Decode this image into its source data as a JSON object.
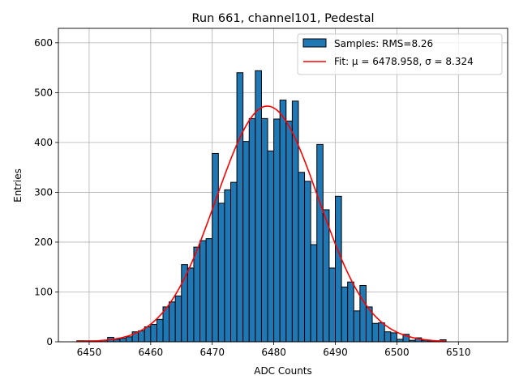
{
  "chart_data": {
    "type": "bar",
    "title": "Run 661, channel101, Pedestal",
    "xlabel": "ADC Counts",
    "ylabel": "Entries",
    "xlim": [
      6445,
      6518
    ],
    "ylim": [
      0,
      629
    ],
    "xticks": [
      6450,
      6460,
      6470,
      6480,
      6490,
      6500,
      6510
    ],
    "yticks": [
      0,
      100,
      200,
      300,
      400,
      500,
      600
    ],
    "grid": true,
    "legend_placement": "top-right",
    "bin_start": 6448,
    "bin_width": 1,
    "values": [
      2,
      2,
      2,
      2,
      3,
      9,
      5,
      7,
      10,
      20,
      22,
      30,
      35,
      45,
      70,
      80,
      92,
      155,
      148,
      190,
      203,
      207,
      378,
      278,
      305,
      320,
      540,
      402,
      448,
      544,
      448,
      383,
      447,
      485,
      443,
      483,
      340,
      322,
      195,
      396,
      265,
      148,
      292,
      110,
      120,
      62,
      113,
      70,
      37,
      38,
      20,
      18,
      5,
      15,
      3,
      8,
      3,
      2,
      1,
      4
    ],
    "fit": {
      "mean": 6478.958,
      "sigma": 8.324,
      "amplitude": 473,
      "range": [
        6448,
        6508
      ]
    },
    "legend": [
      {
        "label": "Samples: RMS=8.26",
        "kind": "bar"
      },
      {
        "label": "Fit: μ = 6478.958, σ = 8.324",
        "kind": "line"
      }
    ],
    "colors": {
      "bar": "#1f77b4",
      "edge": "#000000",
      "fit": "#ff0000",
      "grid": "#b0b0b0"
    }
  }
}
